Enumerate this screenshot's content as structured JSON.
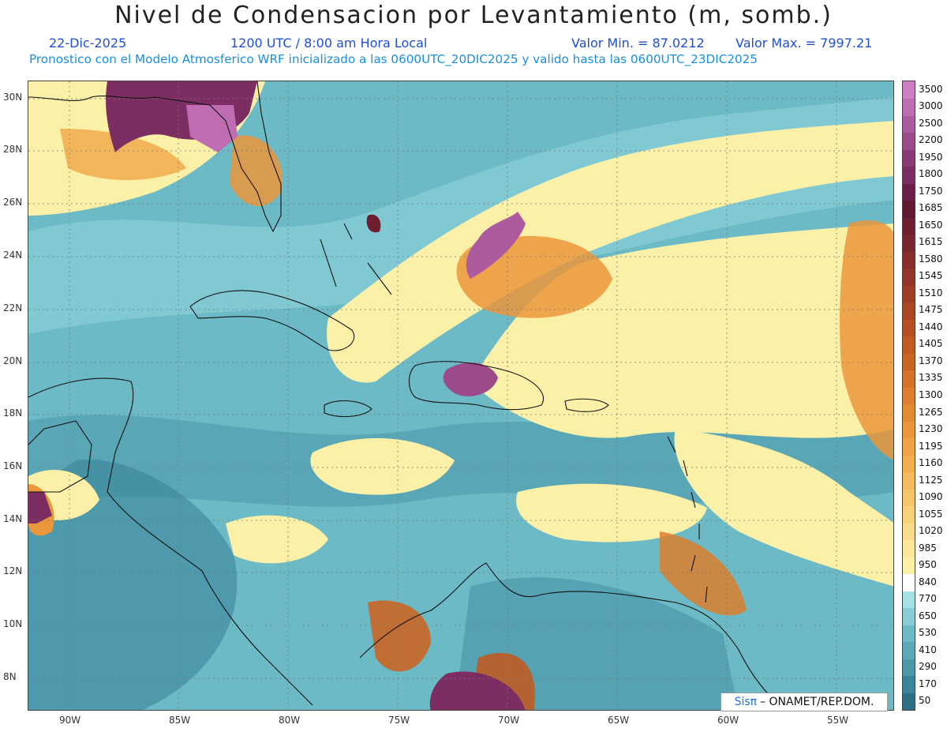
{
  "header": {
    "title": "Nivel de Condensacion por Levantamiento (m, somb.)",
    "date": "22-Dic-2025",
    "time": "1200 UTC / 8:00 am Hora Local",
    "min_label": "Valor Min. = 87.0212",
    "max_label": "Valor Max. = 7997.21",
    "forecast": "Pronostico con el Modelo Atmosferico WRF inicializado a las 0600UTC_20DIC2025 y valido hasta las  0600UTC_23DIC2025"
  },
  "axes": {
    "lat_labels": [
      "30N",
      "28N",
      "26N",
      "24N",
      "22N",
      "20N",
      "18N",
      "16N",
      "14N",
      "12N",
      "10N",
      "8N"
    ],
    "lon_labels": [
      "90W",
      "85W",
      "80W",
      "75W",
      "70W",
      "65W",
      "60W",
      "55W"
    ]
  },
  "legend": {
    "levels": [
      "50",
      "170",
      "290",
      "410",
      "530",
      "650",
      "770",
      "840",
      "950",
      "985",
      "1020",
      "1055",
      "1090",
      "1125",
      "1160",
      "1195",
      "1230",
      "1265",
      "1300",
      "1335",
      "1370",
      "1405",
      "1440",
      "1475",
      "1510",
      "1545",
      "1580",
      "1615",
      "1650",
      "1685",
      "1750",
      "1800",
      "1950",
      "2200",
      "2500",
      "3000",
      "3500"
    ],
    "colors": [
      "#2f6f86",
      "#3b8499",
      "#4a98aa",
      "#5aa8b8",
      "#6cbac6",
      "#86cdd6",
      "#a6e1e6",
      "#ffffff",
      "#fbf0a8",
      "#fbe69a",
      "#f9db8a",
      "#f8d07a",
      "#f6c56a",
      "#f4ba5c",
      "#f2ae50",
      "#f0a244",
      "#ea963a",
      "#e38a33",
      "#dc7e2d",
      "#d37228",
      "#ca6624",
      "#c05b22",
      "#b55022",
      "#aa4624",
      "#9f3d26",
      "#933528",
      "#872d2b",
      "#7a262e",
      "#6d1f30",
      "#5f1932",
      "#6a1e4a",
      "#7c2d62",
      "#8c3a76",
      "#9d4a8a",
      "#ae5a9e",
      "#bf6cb2",
      "#cf7ec4"
    ]
  },
  "credit": {
    "brand": "Sisπ",
    "text": "– ONAMET/REP.DOM."
  },
  "colors": {
    "ocean_mid": "#6cbac6",
    "ocean_dark": "#4a98aa",
    "yellow": "#fbf0a8",
    "orange": "#ea963a",
    "purple": "#9d4a8a"
  }
}
